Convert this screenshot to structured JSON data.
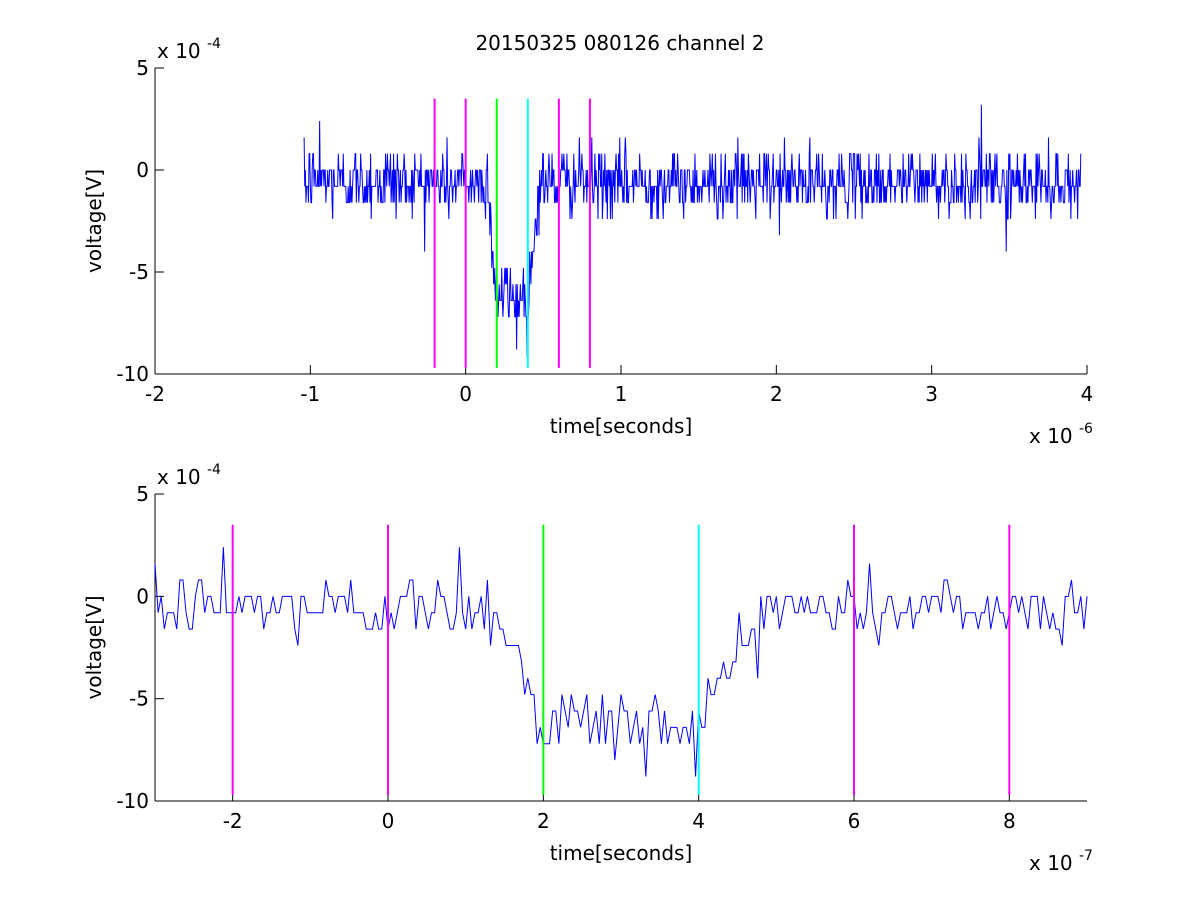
{
  "title": "20150325 080126 channel 2",
  "chart_data": [
    {
      "type": "line",
      "xlabel": "time[seconds]",
      "ylabel": "voltage[V]",
      "xlim": [
        -2e-06,
        4e-06
      ],
      "ylim": [
        -0.001,
        0.0005
      ],
      "xticks": [
        -2,
        -1,
        0,
        1,
        2,
        3,
        4
      ],
      "xtick_labels": [
        "-2",
        "-1",
        "0",
        "1",
        "2",
        "3",
        "4"
      ],
      "x_multiplier": "x 10",
      "x_exponent": "-6",
      "yticks": [
        -10,
        -5,
        0,
        5
      ],
      "ytick_labels": [
        "-10",
        "-5",
        "0",
        "5"
      ],
      "y_multiplier": "x 10",
      "y_exponent": "-4",
      "signal": {
        "color": "#0000ff",
        "x_start": -1.04e-06,
        "x_end": 3.96e-06,
        "dt": 4e-09,
        "baseline": -6e-05,
        "quantum": 8e-05,
        "noise_sd": 8e-05,
        "pulse_low": -0.00062,
        "pulse_fall": [
          1.4e-07,
          2e-07
        ],
        "pulse_rise": [
          4e-07,
          4.8e-07
        ],
        "extremes": [
          [
            3.32e-06,
            0.00032
          ],
          [
            3.48e-06,
            -0.0004
          ],
          [
            3.3e-07,
            -0.00088
          ],
          [
            -9.4e-07,
            0.00024
          ]
        ]
      },
      "vlines": [
        {
          "x": -2e-07,
          "color": "#ff00ff"
        },
        {
          "x": 0.0,
          "color": "#ff00ff"
        },
        {
          "x": 2e-07,
          "color": "#00ff00"
        },
        {
          "x": 4e-07,
          "color": "#00ffff"
        },
        {
          "x": 6e-07,
          "color": "#ff00ff"
        },
        {
          "x": 8e-07,
          "color": "#ff00ff"
        }
      ],
      "vline_range": [
        -0.00097,
        0.00035
      ]
    },
    {
      "type": "line",
      "xlabel": "time[seconds]",
      "ylabel": "voltage[V]",
      "xlim": [
        -3e-07,
        9e-07
      ],
      "ylim": [
        -0.001,
        0.0005
      ],
      "xticks": [
        -2,
        0,
        2,
        4,
        6,
        8
      ],
      "xtick_labels": [
        "-2",
        "0",
        "2",
        "4",
        "6",
        "8"
      ],
      "x_multiplier": "x 10",
      "x_exponent": "-7",
      "yticks": [
        -10,
        -5,
        0,
        5
      ],
      "ytick_labels": [
        "-10",
        "-5",
        "0",
        "5"
      ],
      "y_multiplier": "x 10",
      "y_exponent": "-4",
      "signal": {
        "color": "#0000ff",
        "x_start": -3e-07,
        "x_end": 9e-07,
        "dt": 4e-09,
        "baseline": -6e-05,
        "quantum": 8e-05,
        "noise_sd": 8e-05,
        "pulse_low": -0.00062,
        "pulse_fall": [
          1.4e-07,
          2e-07
        ],
        "pulse_rise": [
          4e-07,
          4.8e-07
        ],
        "extremes": [
          [
            -2.1e-07,
            0.00024
          ],
          [
            9.2e-08,
            0.00024
          ],
          [
            3.33e-07,
            -0.00088
          ],
          [
            3.96e-07,
            -0.00088
          ]
        ]
      },
      "vlines": [
        {
          "x": -2e-07,
          "color": "#ff00ff"
        },
        {
          "x": 0.0,
          "color": "#ff00ff"
        },
        {
          "x": 2e-07,
          "color": "#00ff00"
        },
        {
          "x": 4e-07,
          "color": "#00ffff"
        },
        {
          "x": 6e-07,
          "color": "#ff00ff"
        },
        {
          "x": 8e-07,
          "color": "#ff00ff"
        }
      ],
      "vline_range": [
        -0.00097,
        0.00035
      ]
    }
  ]
}
